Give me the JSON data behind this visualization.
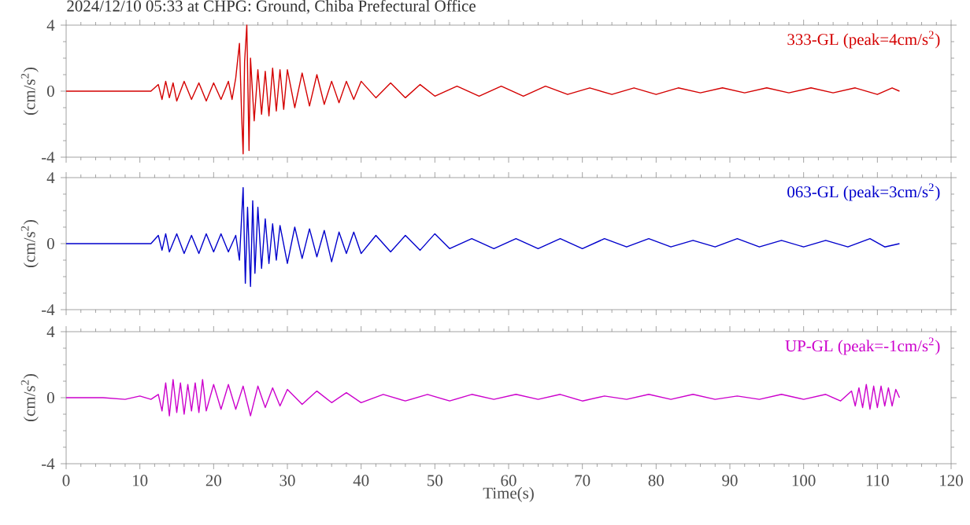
{
  "chart_data": [
    {
      "type": "line",
      "title": "2024/12/10 05:33 at CHPG: Ground, Chiba Prefectural Office",
      "ylabel": "(cm/s$^{2}$)",
      "xlim": [
        0,
        120
      ],
      "xticks": [
        0,
        10,
        20,
        30,
        40,
        50,
        60,
        70,
        80,
        90,
        100,
        110,
        120
      ],
      "ylim": [
        -4,
        4
      ],
      "yticks": [
        -4,
        0,
        4
      ],
      "tick_labels": "y",
      "legend": "top right",
      "series": [
        {
          "name": "333-GL (peak=4cm/s$^{2}$)",
          "color": "#d40000",
          "x": [
            0,
            6,
            11.5,
            12.5,
            13,
            13.5,
            14,
            14.5,
            15,
            16,
            17,
            18,
            19,
            20,
            21,
            22,
            22.5,
            23,
            23.5,
            23.8,
            24,
            24.2,
            24.5,
            24.8,
            25,
            25.5,
            26,
            26.5,
            27,
            27.5,
            28,
            28.5,
            29,
            29.5,
            30,
            31,
            32,
            33,
            34,
            35,
            36,
            37,
            38,
            39,
            40,
            42,
            44,
            46,
            48,
            50,
            53,
            56,
            59,
            62,
            65,
            68,
            71,
            74,
            77,
            80,
            83,
            86,
            89,
            92,
            95,
            98,
            101,
            104,
            107,
            110,
            112,
            113
          ],
          "values": [
            0,
            0,
            0,
            0.4,
            -0.5,
            0.6,
            -0.4,
            0.5,
            -0.6,
            0.6,
            -0.5,
            0.5,
            -0.6,
            0.5,
            -0.5,
            0.6,
            -0.5,
            0.8,
            2.9,
            -1.5,
            -3.8,
            1.8,
            4,
            -3.6,
            2,
            -1.8,
            1.3,
            -1.4,
            1.2,
            -1.5,
            1.4,
            -1.2,
            1.3,
            -1.1,
            1.3,
            -1,
            1.1,
            -0.9,
            1,
            -0.8,
            0.6,
            -0.7,
            0.6,
            -0.5,
            0.6,
            -0.4,
            0.5,
            -0.4,
            0.4,
            -0.3,
            0.3,
            -0.3,
            0.3,
            -0.3,
            0.3,
            -0.2,
            0.2,
            -0.2,
            0.2,
            -0.2,
            0.2,
            -0.1,
            0.2,
            -0.1,
            0.2,
            -0.1,
            0.2,
            -0.1,
            0.2,
            -0.2,
            0.2,
            0
          ]
        }
      ]
    },
    {
      "type": "line",
      "ylabel": "(cm/s$^{2}$)",
      "xlim": [
        0,
        120
      ],
      "xticks": [
        0,
        10,
        20,
        30,
        40,
        50,
        60,
        70,
        80,
        90,
        100,
        110,
        120
      ],
      "ylim": [
        -4,
        4
      ],
      "yticks": [
        -4,
        0,
        4
      ],
      "tick_labels": "y",
      "legend": "top right",
      "series": [
        {
          "name": "063-GL (peak=3cm/s$^{2}$)",
          "color": "#0000cc",
          "x": [
            0,
            6,
            11.5,
            12.5,
            13,
            13.5,
            14,
            15,
            16,
            17,
            18,
            19,
            20,
            21,
            22,
            23,
            23.5,
            24,
            24.3,
            24.6,
            25,
            25.3,
            25.6,
            26,
            26.5,
            27,
            27.5,
            28,
            28.5,
            29,
            30,
            31,
            32,
            33,
            34,
            35,
            36,
            37,
            38,
            39,
            40,
            42,
            44,
            46,
            48,
            50,
            52,
            55,
            58,
            61,
            64,
            67,
            70,
            73,
            76,
            79,
            82,
            85,
            88,
            91,
            94,
            97,
            100,
            103,
            106,
            109,
            111,
            113
          ],
          "values": [
            0,
            0,
            0,
            0.5,
            -0.4,
            0.6,
            -0.5,
            0.6,
            -0.6,
            0.5,
            -0.6,
            0.6,
            -0.5,
            0.6,
            -0.5,
            0.5,
            -1,
            3.4,
            -2.4,
            2.2,
            -2.6,
            2.6,
            -1.8,
            2.2,
            -1.5,
            1.5,
            -1.2,
            1.2,
            -1,
            1.1,
            -1.2,
            1,
            -0.9,
            0.9,
            -0.8,
            0.8,
            -1.1,
            0.7,
            -0.6,
            0.7,
            -0.6,
            0.5,
            -0.5,
            0.5,
            -0.4,
            0.6,
            -0.3,
            0.3,
            -0.3,
            0.3,
            -0.3,
            0.3,
            -0.3,
            0.3,
            -0.2,
            0.3,
            -0.2,
            0.2,
            -0.2,
            0.3,
            -0.2,
            0.2,
            -0.2,
            0.2,
            -0.2,
            0.3,
            -0.2,
            0
          ]
        }
      ]
    },
    {
      "type": "line",
      "xlabel": "Time(s)",
      "ylabel": "(cm/s$^{2}$)",
      "xlim": [
        0,
        120
      ],
      "xticks": [
        0,
        10,
        20,
        30,
        40,
        50,
        60,
        70,
        80,
        90,
        100,
        110,
        120
      ],
      "ylim": [
        -4,
        4
      ],
      "yticks": [
        -4,
        0,
        4
      ],
      "legend": "top right",
      "series": [
        {
          "name": "UP-GL (peak=-1cm/s$^{2}$)",
          "color": "#cc00cc",
          "x": [
            0,
            5,
            8,
            10,
            11.5,
            12.5,
            13,
            13.5,
            14,
            14.5,
            15,
            15.5,
            16,
            16.5,
            17,
            17.5,
            18,
            18.5,
            19,
            20,
            21,
            22,
            23,
            24,
            25,
            26,
            27,
            28,
            29,
            30,
            32,
            34,
            36,
            38,
            40,
            43,
            46,
            49,
            52,
            55,
            58,
            61,
            64,
            67,
            70,
            73,
            76,
            79,
            82,
            85,
            88,
            91,
            94,
            97,
            100,
            103,
            105,
            106.5,
            107,
            107.5,
            108,
            108.5,
            109,
            109.5,
            110,
            110.5,
            111,
            111.5,
            112,
            112.5,
            113
          ],
          "values": [
            0,
            0,
            -0.1,
            0.1,
            -0.1,
            0.2,
            -0.8,
            0.9,
            -1.1,
            1.1,
            -0.9,
            0.9,
            -1,
            0.8,
            -0.8,
            0.9,
            -0.9,
            1.1,
            -0.8,
            0.8,
            -0.7,
            0.8,
            -0.7,
            0.7,
            -1.1,
            0.7,
            -0.6,
            0.6,
            -0.5,
            0.5,
            -0.4,
            0.4,
            -0.3,
            0.3,
            -0.3,
            0.2,
            -0.2,
            0.2,
            -0.2,
            0.2,
            -0.1,
            0.2,
            -0.1,
            0.2,
            -0.2,
            0.1,
            -0.1,
            0.2,
            -0.1,
            0.2,
            -0.1,
            0.1,
            -0.1,
            0.2,
            -0.1,
            0.2,
            -0.2,
            0.4,
            -0.5,
            0.6,
            -0.6,
            0.8,
            -0.7,
            0.7,
            -0.6,
            0.7,
            -0.5,
            0.6,
            -0.5,
            0.5,
            0
          ]
        }
      ]
    }
  ]
}
